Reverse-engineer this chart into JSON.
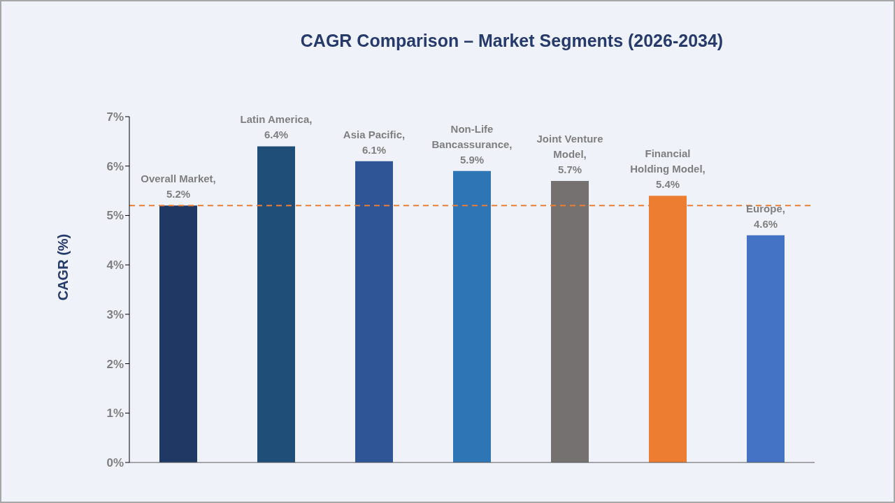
{
  "chart_data": {
    "type": "bar",
    "title": "CAGR Comparison – Market Segments (2026-2034)",
    "ylabel": "CAGR (%)",
    "categories": [
      null,
      null,
      null,
      null,
      null,
      null,
      null
    ],
    "values": [
      5.2,
      6.4,
      6.1,
      5.9,
      5.7,
      5.4,
      4.6
    ],
    "colors": [
      "#203864",
      "#1f4e79",
      "#2f5597",
      "#2e75b6",
      "#767171",
      "#ed7d31",
      "#4472c4"
    ],
    "value_labels": [
      "Overall Market, 5.2%",
      "Latin America, 6.4%",
      "Asia Pacific, 6.1%",
      "Non-Life Bancassurance, 5.9%",
      "Joint Venture Model, 5.7%",
      "Financial Holding Model, 5.4%",
      "Europe, 4.6%"
    ],
    "ylim": [
      0,
      7
    ],
    "yticks": [
      {
        "value": 0,
        "label": "0%"
      },
      {
        "value": 1,
        "label": "1%"
      },
      {
        "value": 2,
        "label": "2%"
      },
      {
        "value": 3,
        "label": "3%"
      },
      {
        "value": 4,
        "label": "4%"
      },
      {
        "value": 5,
        "label": "5%"
      },
      {
        "value": 6,
        "label": "6%"
      },
      {
        "value": 7,
        "label": "7%"
      }
    ],
    "tick_labels": "y",
    "ref_lines": [
      {
        "axis": "y",
        "value": 5.2,
        "color": "#ed7d31",
        "line_style": "dashed"
      }
    ]
  }
}
